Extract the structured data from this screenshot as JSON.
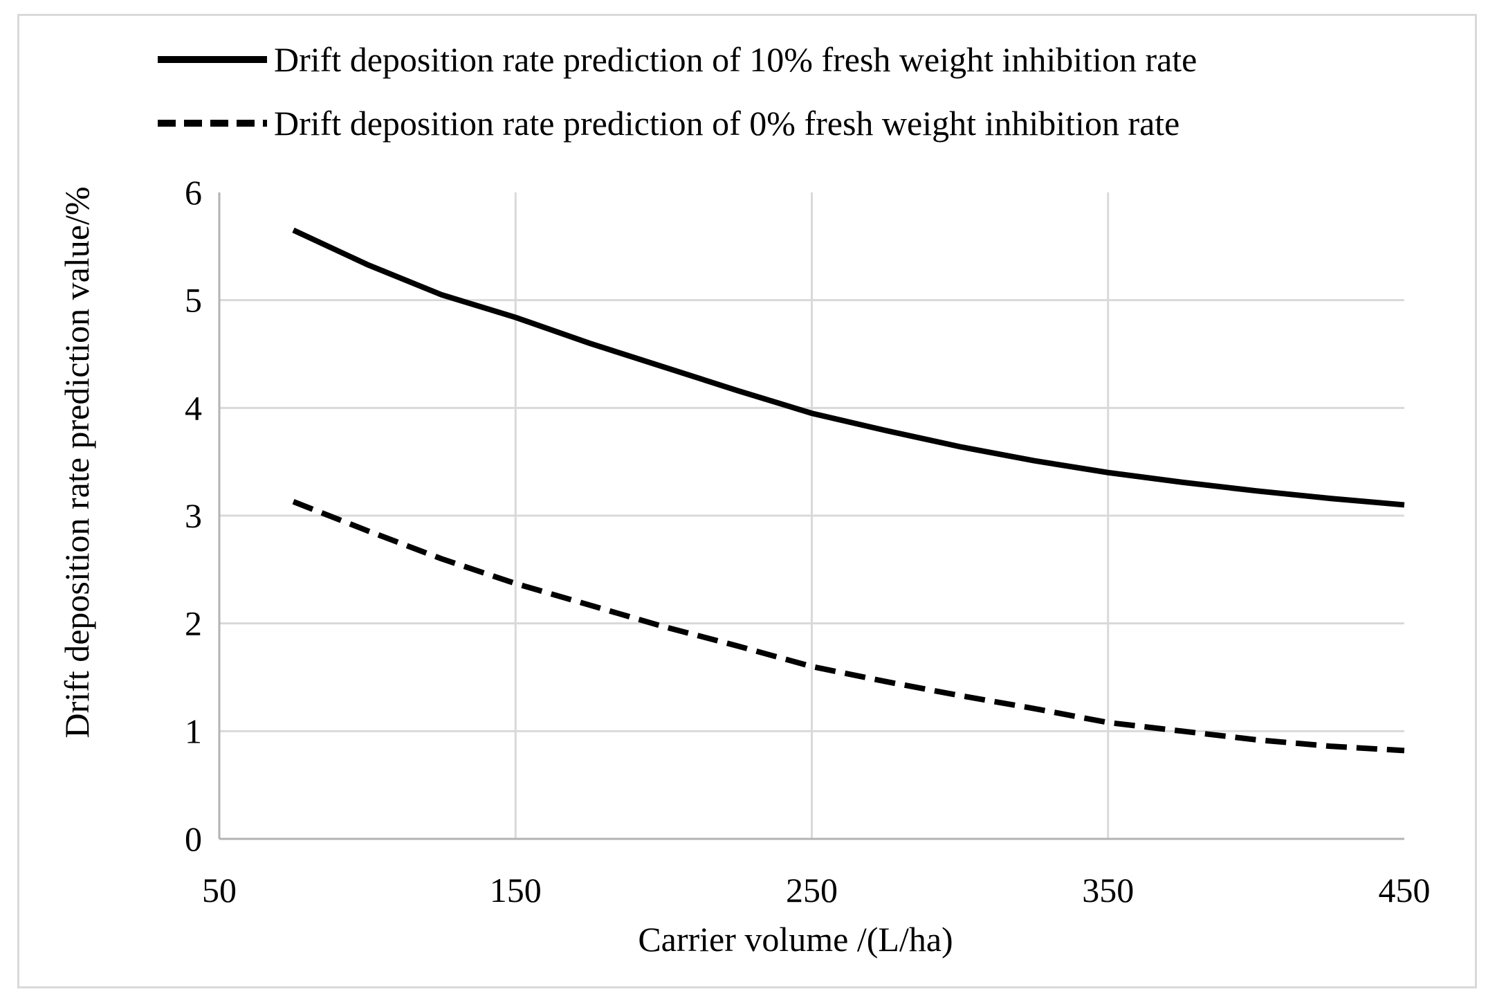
{
  "figure": {
    "background": "#ffffff",
    "frame_color": "#d9d9d9"
  },
  "chart_data": {
    "type": "line",
    "title": "",
    "xlabel": "Carrier volume /(L/ha)",
    "ylabel": "Drift deposition rate prediction value/%",
    "xlim": [
      50,
      450
    ],
    "ylim": [
      0,
      6
    ],
    "xticks": [
      50,
      150,
      250,
      350,
      450
    ],
    "yticks": [
      0,
      1,
      2,
      3,
      4,
      5,
      6
    ],
    "grid": {
      "horizontal_at": [
        1,
        2,
        3,
        4,
        5
      ],
      "vertical_at": [
        150,
        250,
        350
      ]
    },
    "legend_position": "top-left",
    "colors": {
      "line": "#000000",
      "grid": "#d9d9d9",
      "axis": "#b3b3b3",
      "text": "#000000"
    },
    "x": [
      75,
      100,
      125,
      150,
      175,
      200,
      225,
      250,
      275,
      300,
      325,
      350,
      375,
      400,
      425,
      450
    ],
    "series": [
      {
        "name": "Drift deposition rate prediction of 10% fresh weight inhibition rate",
        "style": "solid",
        "values": [
          5.65,
          5.33,
          5.05,
          4.84,
          4.6,
          4.38,
          4.16,
          3.95,
          3.79,
          3.64,
          3.51,
          3.4,
          3.31,
          3.23,
          3.16,
          3.1
        ]
      },
      {
        "name": "Drift deposition rate prediction of 0% fresh weight inhibition rate",
        "style": "dashed",
        "values": [
          3.13,
          2.86,
          2.6,
          2.37,
          2.17,
          1.97,
          1.79,
          1.6,
          1.46,
          1.33,
          1.21,
          1.08,
          1.0,
          0.92,
          0.86,
          0.82
        ]
      }
    ]
  }
}
